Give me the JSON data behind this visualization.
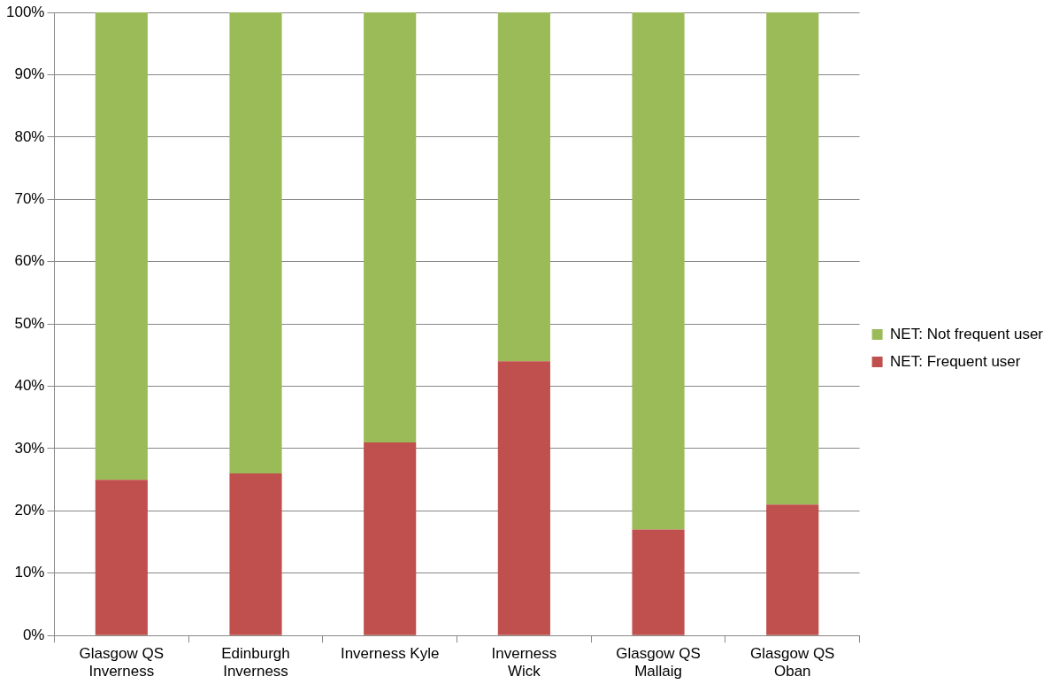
{
  "chart_data": {
    "type": "bar",
    "stacked": true,
    "categories": [
      "Glasgow QS\nInverness",
      "Edinburgh\nInverness",
      "Inverness Kyle",
      "Inverness\nWick",
      "Glasgow QS\nMallaig",
      "Glasgow QS\nOban"
    ],
    "series": [
      {
        "name": "NET: Frequent user",
        "color": "#c0504d",
        "values": [
          25,
          26,
          31,
          44,
          17,
          21
        ]
      },
      {
        "name": "NET: Not frequent user",
        "color": "#9bbb59",
        "values": [
          75,
          74,
          69,
          56,
          83,
          79
        ]
      }
    ],
    "ylim": [
      0,
      100
    ],
    "yticks": [
      {
        "value": 0,
        "label": "0%"
      },
      {
        "value": 10,
        "label": "10%"
      },
      {
        "value": 20,
        "label": "20%"
      },
      {
        "value": 30,
        "label": "30%"
      },
      {
        "value": 40,
        "label": "40%"
      },
      {
        "value": 50,
        "label": "50%"
      },
      {
        "value": 60,
        "label": "60%"
      },
      {
        "value": 70,
        "label": "70%"
      },
      {
        "value": 80,
        "label": "80%"
      },
      {
        "value": 90,
        "label": "90%"
      },
      {
        "value": 100,
        "label": "100%"
      }
    ],
    "grid": "y",
    "legend": "right"
  }
}
